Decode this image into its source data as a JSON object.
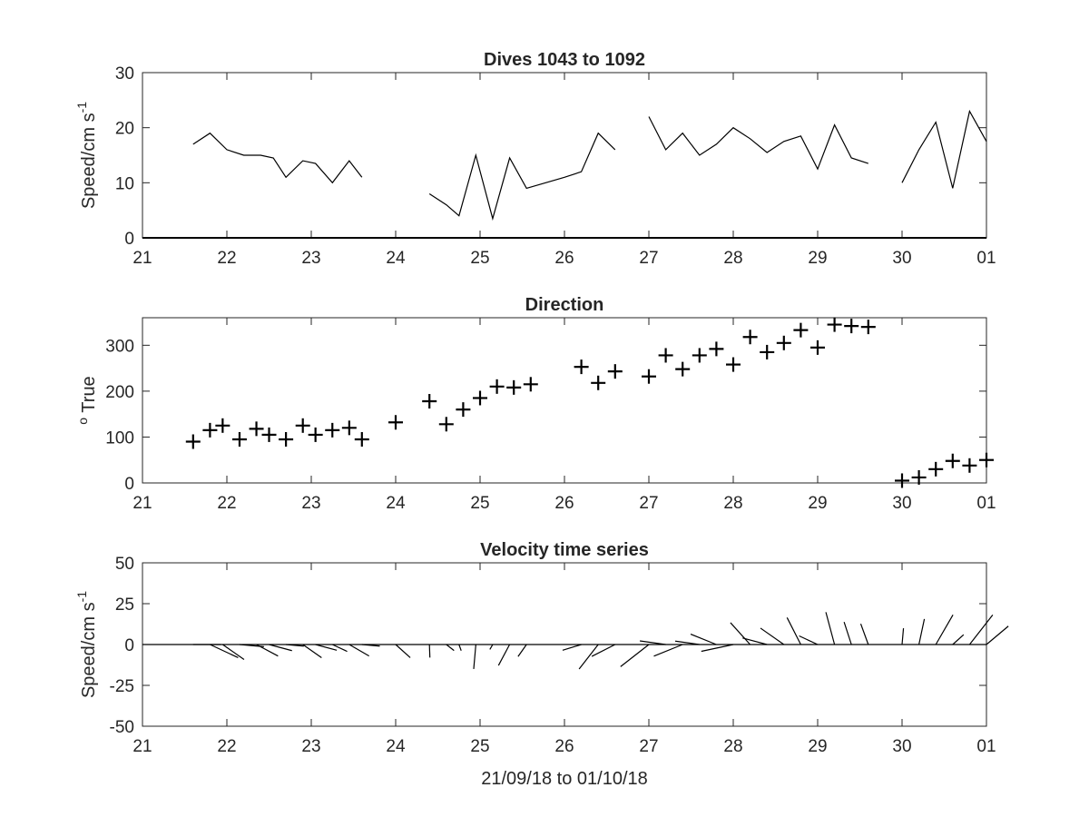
{
  "chart_data": [
    {
      "type": "line",
      "title": "Dives 1043 to 1092",
      "ylabel": "Speed/cm s",
      "ylabel_sup": "-1",
      "xlim": [
        21,
        31
      ],
      "ylim": [
        0,
        30
      ],
      "yticks": [
        0,
        10,
        20,
        30
      ],
      "xtick_labels": [
        "21",
        "22",
        "23",
        "24",
        "25",
        "26",
        "27",
        "28",
        "29",
        "30",
        "01"
      ],
      "segments": [
        {
          "x": [
            21.6,
            21.8,
            22.0,
            22.2,
            22.4,
            22.55,
            22.7,
            22.9,
            23.05,
            23.25,
            23.45,
            23.6
          ],
          "y": [
            17,
            19,
            16,
            15,
            15,
            14.5,
            11,
            14,
            13.5,
            10,
            14,
            11
          ]
        },
        {
          "x": [
            24.4,
            24.6,
            24.75,
            24.95,
            25.15,
            25.35,
            25.55,
            26.0,
            26.2,
            26.4,
            26.6
          ],
          "y": [
            8,
            6,
            4,
            15,
            3.5,
            14.5,
            9,
            11,
            12,
            19,
            16
          ]
        },
        {
          "x": [
            27.0,
            27.2,
            27.4,
            27.6,
            27.8,
            28.0,
            28.2,
            28.4,
            28.6,
            28.8,
            29.0,
            29.2,
            29.4,
            29.6
          ],
          "y": [
            22,
            16,
            19,
            15,
            17,
            20,
            18,
            15.5,
            17.5,
            18.5,
            12.5,
            20.5,
            14.5,
            13.5
          ]
        },
        {
          "x": [
            30.0,
            30.2,
            30.4,
            30.6,
            30.8,
            31.0
          ],
          "y": [
            10,
            16,
            21,
            9,
            23,
            17.5
          ]
        }
      ]
    },
    {
      "type": "scatter",
      "title": "Direction",
      "ylabel": "True",
      "ylabel_prefix": "o",
      "xlim": [
        21,
        31
      ],
      "ylim": [
        0,
        360
      ],
      "yticks": [
        0,
        100,
        200,
        300
      ],
      "xtick_labels": [
        "21",
        "22",
        "23",
        "24",
        "25",
        "26",
        "27",
        "28",
        "29",
        "30",
        "01"
      ],
      "points": [
        [
          21.6,
          90
        ],
        [
          21.8,
          115
        ],
        [
          21.95,
          125
        ],
        [
          22.15,
          95
        ],
        [
          22.35,
          118
        ],
        [
          22.5,
          105
        ],
        [
          22.7,
          95
        ],
        [
          22.9,
          125
        ],
        [
          23.05,
          105
        ],
        [
          23.25,
          115
        ],
        [
          23.45,
          120
        ],
        [
          23.6,
          95
        ],
        [
          24.0,
          132
        ],
        [
          24.4,
          178
        ],
        [
          24.6,
          128
        ],
        [
          24.8,
          160
        ],
        [
          25.0,
          185
        ],
        [
          25.2,
          210
        ],
        [
          25.4,
          208
        ],
        [
          25.6,
          215
        ],
        [
          26.2,
          253
        ],
        [
          26.4,
          218
        ],
        [
          26.6,
          243
        ],
        [
          27.0,
          232
        ],
        [
          27.2,
          278
        ],
        [
          27.4,
          248
        ],
        [
          27.6,
          278
        ],
        [
          27.8,
          292
        ],
        [
          28.0,
          258
        ],
        [
          28.2,
          318
        ],
        [
          28.4,
          285
        ],
        [
          28.6,
          305
        ],
        [
          28.8,
          333
        ],
        [
          29.0,
          295
        ],
        [
          29.2,
          345
        ],
        [
          29.4,
          342
        ],
        [
          29.6,
          340
        ],
        [
          30.0,
          5
        ],
        [
          30.2,
          12
        ],
        [
          30.4,
          30
        ],
        [
          30.6,
          48
        ],
        [
          30.8,
          38
        ],
        [
          31.0,
          50
        ]
      ]
    },
    {
      "type": "stick",
      "title": "Velocity time series",
      "ylabel": "Speed/cm s",
      "ylabel_sup": "-1",
      "xlabel": "21/09/18 to 01/10/18",
      "xlim": [
        21,
        31
      ],
      "ylim": [
        -50,
        50
      ],
      "yticks": [
        -50,
        -25,
        0,
        25,
        50
      ],
      "xtick_labels": [
        "21",
        "22",
        "23",
        "24",
        "25",
        "26",
        "27",
        "28",
        "29",
        "30",
        "01"
      ],
      "sticks": [
        {
          "x": 21.6,
          "speed": 17,
          "dir": 90
        },
        {
          "x": 21.8,
          "speed": 19,
          "dir": 115
        },
        {
          "x": 21.95,
          "speed": 16,
          "dir": 125
        },
        {
          "x": 22.15,
          "speed": 15,
          "dir": 95
        },
        {
          "x": 22.35,
          "speed": 15,
          "dir": 118
        },
        {
          "x": 22.5,
          "speed": 14.5,
          "dir": 105
        },
        {
          "x": 22.7,
          "speed": 11,
          "dir": 95
        },
        {
          "x": 22.9,
          "speed": 14,
          "dir": 125
        },
        {
          "x": 23.05,
          "speed": 13.5,
          "dir": 105
        },
        {
          "x": 23.25,
          "speed": 10,
          "dir": 115
        },
        {
          "x": 23.45,
          "speed": 14,
          "dir": 120
        },
        {
          "x": 23.6,
          "speed": 11,
          "dir": 95
        },
        {
          "x": 24.0,
          "speed": 12,
          "dir": 132
        },
        {
          "x": 24.4,
          "speed": 8,
          "dir": 178
        },
        {
          "x": 24.6,
          "speed": 6,
          "dir": 128
        },
        {
          "x": 24.75,
          "speed": 4,
          "dir": 160
        },
        {
          "x": 24.95,
          "speed": 15,
          "dir": 185
        },
        {
          "x": 25.15,
          "speed": 3.5,
          "dir": 210
        },
        {
          "x": 25.35,
          "speed": 14.5,
          "dir": 208
        },
        {
          "x": 25.55,
          "speed": 9,
          "dir": 215
        },
        {
          "x": 26.2,
          "speed": 12,
          "dir": 253
        },
        {
          "x": 26.4,
          "speed": 19,
          "dir": 218
        },
        {
          "x": 26.6,
          "speed": 16,
          "dir": 243
        },
        {
          "x": 27.0,
          "speed": 22,
          "dir": 232
        },
        {
          "x": 27.2,
          "speed": 16,
          "dir": 278
        },
        {
          "x": 27.4,
          "speed": 19,
          "dir": 248
        },
        {
          "x": 27.6,
          "speed": 15,
          "dir": 278
        },
        {
          "x": 27.8,
          "speed": 17,
          "dir": 292
        },
        {
          "x": 28.0,
          "speed": 20,
          "dir": 258
        },
        {
          "x": 28.2,
          "speed": 18,
          "dir": 318
        },
        {
          "x": 28.4,
          "speed": 15.5,
          "dir": 285
        },
        {
          "x": 28.6,
          "speed": 17.5,
          "dir": 305
        },
        {
          "x": 28.8,
          "speed": 18.5,
          "dir": 333
        },
        {
          "x": 29.0,
          "speed": 12.5,
          "dir": 295
        },
        {
          "x": 29.2,
          "speed": 20.5,
          "dir": 345
        },
        {
          "x": 29.4,
          "speed": 14.5,
          "dir": 342
        },
        {
          "x": 29.6,
          "speed": 13.5,
          "dir": 340
        },
        {
          "x": 30.0,
          "speed": 10,
          "dir": 5
        },
        {
          "x": 30.2,
          "speed": 16,
          "dir": 12
        },
        {
          "x": 30.4,
          "speed": 21,
          "dir": 30
        },
        {
          "x": 30.6,
          "speed": 9,
          "dir": 48
        },
        {
          "x": 30.8,
          "speed": 23,
          "dir": 38
        },
        {
          "x": 31.0,
          "speed": 17.5,
          "dir": 50
        }
      ]
    }
  ]
}
